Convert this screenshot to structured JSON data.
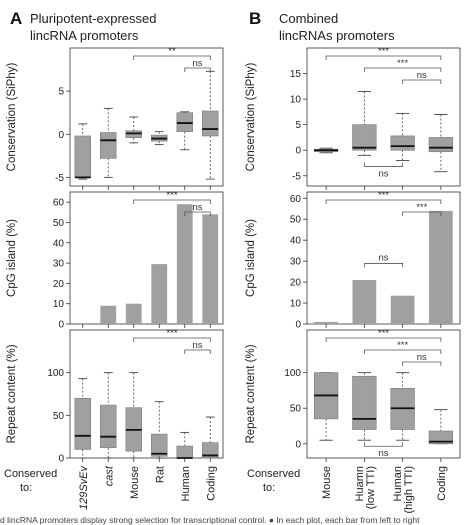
{
  "panels": {
    "A": {
      "letter": "A",
      "title_line1": "Pluripotent-expressed",
      "title_line2": "lincRNA promoters",
      "x_axis_label_line1": "Conserved",
      "x_axis_label_line2": "to:"
    },
    "B": {
      "letter": "B",
      "title_line1": "Combined",
      "title_line2": "lincRNAs promoters",
      "x_axis_label_line1": "Conserved",
      "x_axis_label_line2": "to:"
    }
  },
  "caption_fragment": "d lincRNA promoters display strong selection for transcriptional control. ● In each plot, each bar from left to right",
  "chart_data": [
    {
      "id": "A-conservation",
      "panel": "A",
      "type": "box",
      "ylabel": "Conservation (SiPhy)",
      "ylim": [
        -6,
        10
      ],
      "yticks": [
        -5,
        0,
        5
      ],
      "categories": [
        "129SvEv",
        "cast",
        "Mouse",
        "Rat",
        "Human",
        "Coding"
      ],
      "boxes": [
        {
          "whislo": -5.2,
          "q1": -5.0,
          "med": -5.0,
          "q3": -0.2,
          "whishi": 1.2
        },
        {
          "whislo": -5.0,
          "q1": -2.8,
          "med": -0.7,
          "q3": 0.2,
          "whishi": 3.0
        },
        {
          "whislo": -1.0,
          "q1": -0.4,
          "med": 0.1,
          "q3": 0.4,
          "whishi": 2.0
        },
        {
          "whislo": -1.2,
          "q1": -0.8,
          "med": -0.5,
          "q3": -0.1,
          "whishi": 0.3
        },
        {
          "whislo": -1.8,
          "q1": 0.3,
          "med": 1.3,
          "q3": 2.5,
          "whishi": 2.6
        },
        {
          "whislo": -5.2,
          "q1": -0.2,
          "med": 0.6,
          "q3": 2.7,
          "whishi": 7.3
        }
      ],
      "significance": [
        {
          "from": 2,
          "to": 5,
          "label": "**"
        },
        {
          "from": 4,
          "to": 5,
          "label": "ns"
        }
      ]
    },
    {
      "id": "A-cpg",
      "panel": "A",
      "type": "bar",
      "ylabel": "CpG island (%)",
      "ylim": [
        0,
        65
      ],
      "yticks": [
        0,
        10,
        20,
        30,
        40,
        50,
        60
      ],
      "categories": [
        "129SvEv",
        "cast",
        "Mouse",
        "Rat",
        "Human",
        "Coding"
      ],
      "values": [
        0,
        9,
        10,
        29.5,
        59,
        54
      ],
      "significance": [
        {
          "from": 2,
          "to": 5,
          "label": "***"
        },
        {
          "from": 4,
          "to": 5,
          "label": "ns"
        }
      ]
    },
    {
      "id": "A-repeat",
      "panel": "A",
      "type": "box",
      "ylabel": "Repeat content (%)",
      "ylim": [
        0,
        150
      ],
      "yticks": [
        0,
        50,
        100
      ],
      "categories": [
        "129SvEv",
        "cast",
        "Mouse",
        "Rat",
        "Human",
        "Coding"
      ],
      "boxes": [
        {
          "whislo": 0,
          "q1": 10,
          "med": 26,
          "q3": 70,
          "whishi": 93
        },
        {
          "whislo": 0,
          "q1": 12,
          "med": 25,
          "q3": 62,
          "whishi": 100
        },
        {
          "whislo": 0,
          "q1": 8,
          "med": 33,
          "q3": 59,
          "whishi": 100
        },
        {
          "whislo": 0,
          "q1": 2,
          "med": 5,
          "q3": 28,
          "whishi": 66
        },
        {
          "whislo": 0,
          "q1": 0,
          "med": 0,
          "q3": 14,
          "whishi": 30
        },
        {
          "whislo": 0,
          "q1": 0,
          "med": 3,
          "q3": 18,
          "whishi": 48
        }
      ],
      "significance": [
        {
          "from": 2,
          "to": 5,
          "label": "***"
        },
        {
          "from": 4,
          "to": 5,
          "label": "ns"
        }
      ]
    },
    {
      "id": "B-conservation",
      "panel": "B",
      "type": "box",
      "ylabel": "Conservation (SiPhy)",
      "ylim": [
        -7,
        20
      ],
      "yticks": [
        -5,
        0,
        5,
        10,
        15
      ],
      "categories": [
        "Mouse",
        "Huamn\n(low TTI)",
        "Human\n(high TTI)",
        "Coding"
      ],
      "boxes": [
        {
          "whislo": -0.5,
          "q1": -0.3,
          "med": 0.0,
          "q3": 0.2,
          "whishi": 0.4
        },
        {
          "whislo": -1.0,
          "q1": 0.0,
          "med": 0.5,
          "q3": 5.0,
          "whishi": 11.5
        },
        {
          "whislo": -2.0,
          "q1": 0.0,
          "med": 0.8,
          "q3": 2.8,
          "whishi": 7.2
        },
        {
          "whislo": -4.2,
          "q1": -0.3,
          "med": 0.5,
          "q3": 2.5,
          "whishi": 7.0
        }
      ],
      "significance": [
        {
          "from": 0,
          "to": 3,
          "label": "***"
        },
        {
          "from": 1,
          "to": 3,
          "label": "***"
        },
        {
          "from": 2,
          "to": 3,
          "label": "ns"
        },
        {
          "from": 1,
          "to": 2,
          "label": "ns",
          "below": true
        }
      ]
    },
    {
      "id": "B-cpg",
      "panel": "B",
      "type": "bar",
      "ylabel": "CpG island (%)",
      "ylim": [
        0,
        63
      ],
      "yticks": [
        0,
        10,
        20,
        30,
        40,
        50,
        60
      ],
      "categories": [
        "Mouse",
        "Huamn\n(low TTI)",
        "Human\n(high TTI)",
        "Coding"
      ],
      "values": [
        1,
        21,
        13.5,
        54
      ],
      "significance": [
        {
          "from": 0,
          "to": 3,
          "label": "***"
        },
        {
          "from": 2,
          "to": 3,
          "label": "***"
        },
        {
          "from": 1,
          "to": 2,
          "label": "ns",
          "below": true
        }
      ]
    },
    {
      "id": "B-repeat",
      "panel": "B",
      "type": "box",
      "ylabel": "Repeat content (%)",
      "ylim": [
        -20,
        160
      ],
      "yticks": [
        0,
        50,
        100
      ],
      "categories": [
        "Mouse",
        "Huamn\n(low TTI)",
        "Human\n(high TTI)",
        "Coding"
      ],
      "boxes": [
        {
          "whislo": 5,
          "q1": 35,
          "med": 68,
          "q3": 100,
          "whishi": 100
        },
        {
          "whislo": 5,
          "q1": 20,
          "med": 35,
          "q3": 95,
          "whishi": 100
        },
        {
          "whislo": 5,
          "q1": 20,
          "med": 50,
          "q3": 78,
          "whishi": 100
        },
        {
          "whislo": 0,
          "q1": 0,
          "med": 3,
          "q3": 18,
          "whishi": 48
        }
      ],
      "significance": [
        {
          "from": 0,
          "to": 3,
          "label": "***"
        },
        {
          "from": 1,
          "to": 3,
          "label": "***"
        },
        {
          "from": 2,
          "to": 3,
          "label": "ns"
        },
        {
          "from": 1,
          "to": 2,
          "label": "ns",
          "below": true
        }
      ]
    }
  ],
  "colors": {
    "box_fill": "#a0a0a0",
    "bar_fill": "#a0a0a0",
    "median": "#111111",
    "whisker": "#444444",
    "bracket": "#555555",
    "frame": "#333333"
  }
}
